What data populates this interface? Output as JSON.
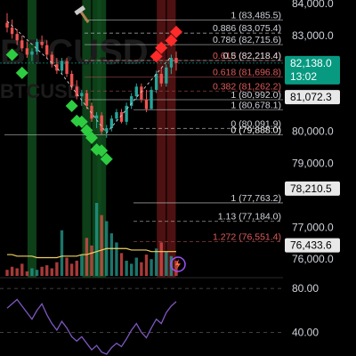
{
  "watermark": {
    "symbol": "BTCUSD",
    "subtitle": "BTCUSD"
  },
  "colors": {
    "background": "#000000",
    "candle_up": "#26a69a",
    "candle_down": "#ef5350",
    "fib_line": "#c8c8c8",
    "fib_text": "#d1d4dc",
    "fib_text_red": "#e05a5a",
    "rsi_line": "#7e57c2",
    "volume_ma": "#f0d060",
    "price_badge": "#089981",
    "buy_signal": "#2ecc40",
    "sell_signal": "#ff2a2a"
  },
  "price_axis": {
    "ticks": [
      {
        "value": 84000,
        "label": "84,000.0"
      },
      {
        "value": 83000,
        "label": "83,000.0"
      },
      {
        "value": 80000,
        "label": "80,000.0"
      },
      {
        "value": 79000,
        "label": "79,000.0"
      },
      {
        "value": 77000,
        "label": "77,000.0"
      },
      {
        "value": 76000,
        "label": "76,000.0"
      }
    ],
    "current_price_label": "82,138.0",
    "countdown_label": "13:02",
    "level_badges": [
      {
        "value": 81072.3,
        "label": "81,072.3"
      },
      {
        "value": 78210.5,
        "label": "78,210.5"
      },
      {
        "value": 76433.6,
        "label": "76,433.6"
      }
    ]
  },
  "fib_levels": [
    {
      "label": "1 (83,485.5)",
      "y": 83485.5,
      "color": "#d1d4dc"
    },
    {
      "label": "0.886 (83,075.4)",
      "y": 83075.4,
      "color": "#d1d4dc"
    },
    {
      "label": "0.786 (82,715.6)",
      "y": 82715.6,
      "color": "#d1d4dc"
    },
    {
      "label": "0.618 (82,218.4)",
      "y": 82218.4,
      "color": "#e05a5a"
    },
    {
      "label": "0.5 (82,218.4)",
      "y": 82218.4,
      "color": "#d1d4dc"
    },
    {
      "label": "0.618 (81,696.8)",
      "y": 81696.8,
      "color": "#e05a5a"
    },
    {
      "label": "0.382 (81,262.2)",
      "y": 81262.2,
      "color": "#e05a5a"
    },
    {
      "label": "1 (80,992.0)",
      "y": 80992,
      "color": "#d1d4dc"
    },
    {
      "label": "1 (80,678.1)",
      "y": 80678.1,
      "color": "#d1d4dc"
    },
    {
      "label": "0 (80,091.9)",
      "y": 80091.9,
      "color": "#d1d4dc"
    },
    {
      "label": "0 (79,888.0)",
      "y": 79888,
      "color": "#ffffff"
    },
    {
      "label": "1 (77,763.2)",
      "y": 77763.2,
      "color": "#d1d4dc"
    },
    {
      "label": "1.13 (77,184.0)",
      "y": 77184,
      "color": "#d1d4dc"
    },
    {
      "label": "1.272 (76,551.4)",
      "y": 76551.4,
      "color": "#e05a5a"
    }
  ],
  "rsi_axis": {
    "ticks": [
      {
        "value": 80,
        "label": "80.00"
      },
      {
        "value": 40,
        "label": "40.00"
      }
    ]
  },
  "chart_data": {
    "type": "candlestick",
    "ylim": [
      75700,
      84000
    ],
    "candles": [
      {
        "o": 83400,
        "h": 83700,
        "l": 83100,
        "c": 83250
      },
      {
        "o": 83250,
        "h": 83500,
        "l": 82900,
        "c": 83050
      },
      {
        "o": 83050,
        "h": 83200,
        "l": 82700,
        "c": 82850
      },
      {
        "o": 82850,
        "h": 83000,
        "l": 82500,
        "c": 82600
      },
      {
        "o": 82600,
        "h": 82800,
        "l": 82300,
        "c": 82400
      },
      {
        "o": 82400,
        "h": 82600,
        "l": 82200,
        "c": 82500
      },
      {
        "o": 82500,
        "h": 82900,
        "l": 82400,
        "c": 82800
      },
      {
        "o": 82800,
        "h": 83000,
        "l": 82600,
        "c": 82700
      },
      {
        "o": 82700,
        "h": 82850,
        "l": 82300,
        "c": 82400
      },
      {
        "o": 82400,
        "h": 82500,
        "l": 82000,
        "c": 82100
      },
      {
        "o": 82100,
        "h": 82300,
        "l": 81800,
        "c": 81900
      },
      {
        "o": 81900,
        "h": 82300,
        "l": 81800,
        "c": 82200
      },
      {
        "o": 82200,
        "h": 82300,
        "l": 81700,
        "c": 81800
      },
      {
        "o": 81800,
        "h": 81900,
        "l": 81300,
        "c": 81400
      },
      {
        "o": 81400,
        "h": 81600,
        "l": 81000,
        "c": 81100
      },
      {
        "o": 81100,
        "h": 81300,
        "l": 80800,
        "c": 81200
      },
      {
        "o": 81200,
        "h": 81300,
        "l": 80700,
        "c": 80800
      },
      {
        "o": 80800,
        "h": 80900,
        "l": 80300,
        "c": 80400
      },
      {
        "o": 80400,
        "h": 80600,
        "l": 80100,
        "c": 80500
      },
      {
        "o": 80500,
        "h": 80600,
        "l": 79900,
        "c": 80000
      },
      {
        "o": 80000,
        "h": 80200,
        "l": 79800,
        "c": 80100
      },
      {
        "o": 80100,
        "h": 80500,
        "l": 80000,
        "c": 80400
      },
      {
        "o": 80400,
        "h": 80700,
        "l": 80300,
        "c": 80600
      },
      {
        "o": 80600,
        "h": 80700,
        "l": 80250,
        "c": 80300
      },
      {
        "o": 80300,
        "h": 80900,
        "l": 80200,
        "c": 80800
      },
      {
        "o": 80800,
        "h": 81200,
        "l": 80700,
        "c": 81100
      },
      {
        "o": 81100,
        "h": 81500,
        "l": 81000,
        "c": 81400
      },
      {
        "o": 81400,
        "h": 81500,
        "l": 80900,
        "c": 81000
      },
      {
        "o": 81000,
        "h": 81300,
        "l": 80600,
        "c": 80700
      },
      {
        "o": 80700,
        "h": 81400,
        "l": 80700,
        "c": 81300
      },
      {
        "o": 81300,
        "h": 81900,
        "l": 81200,
        "c": 81800
      },
      {
        "o": 81800,
        "h": 82000,
        "l": 81400,
        "c": 81500
      },
      {
        "o": 81500,
        "h": 82100,
        "l": 81400,
        "c": 82000
      },
      {
        "o": 82000,
        "h": 82400,
        "l": 81800,
        "c": 82300
      },
      {
        "o": 82300,
        "h": 82500,
        "l": 81900,
        "c": 82138
      }
    ],
    "volume": [
      4,
      6,
      5,
      8,
      3,
      5,
      4,
      6,
      7,
      5,
      9,
      30,
      12,
      8,
      10,
      14,
      25,
      20,
      48,
      40,
      36,
      28,
      22,
      15,
      10,
      8,
      12,
      9,
      14,
      11,
      18,
      22,
      16,
      13,
      10
    ],
    "volume_ma": [
      14,
      14,
      13,
      13,
      13,
      13,
      12,
      12,
      12,
      12,
      12,
      13,
      13,
      13,
      13,
      14,
      14,
      15,
      16,
      17,
      18,
      18,
      18,
      18,
      18,
      17,
      17,
      17,
      17,
      16,
      16,
      16,
      16,
      16,
      16
    ],
    "rsi": [
      62,
      66,
      70,
      64,
      58,
      52,
      60,
      66,
      56,
      48,
      42,
      50,
      44,
      36,
      32,
      36,
      30,
      24,
      28,
      22,
      20,
      26,
      30,
      27,
      34,
      42,
      48,
      40,
      35,
      44,
      52,
      48,
      58,
      64,
      68
    ],
    "rsi_ylim": [
      20,
      85
    ],
    "buy_signals": [
      1,
      3,
      13,
      14,
      15,
      16,
      17,
      18,
      19,
      20
    ],
    "sell_signals": [
      30,
      31,
      33,
      34
    ],
    "highlight_bars": [
      {
        "i": 5,
        "color": "green"
      },
      {
        "i": 16,
        "color": "green"
      },
      {
        "i": 18,
        "color": "green"
      },
      {
        "i": 19,
        "color": "green"
      },
      {
        "i": 31,
        "color": "red"
      },
      {
        "i": 33,
        "color": "red"
      }
    ]
  }
}
